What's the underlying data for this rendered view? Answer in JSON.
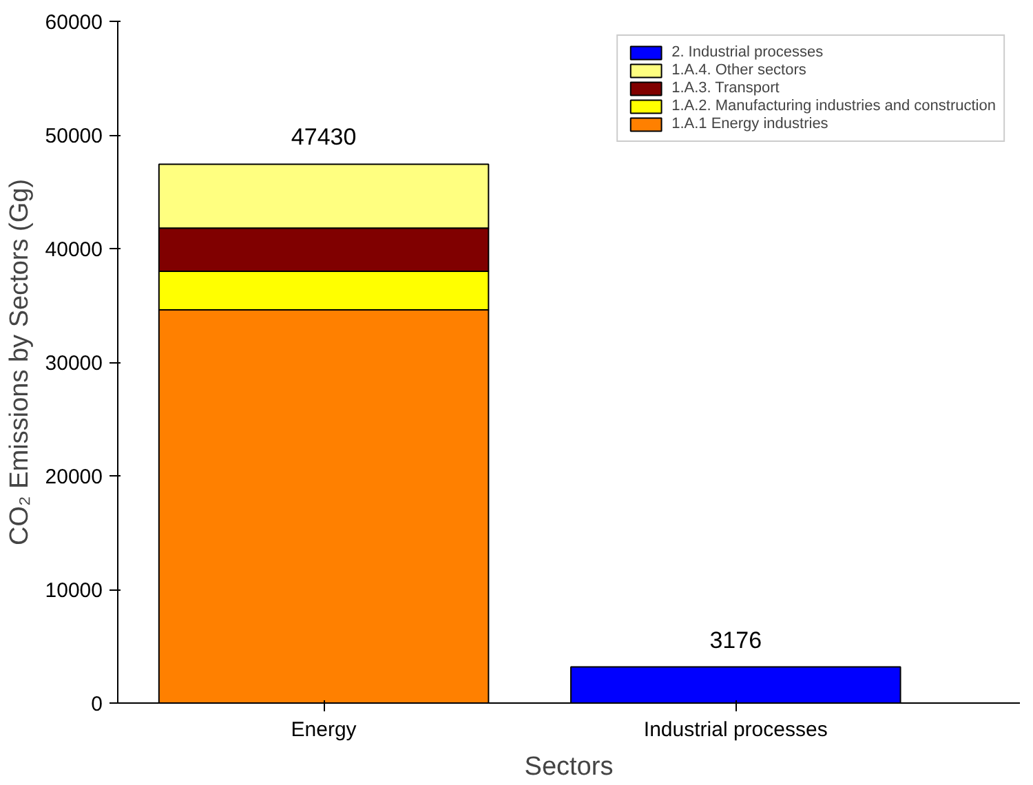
{
  "chart_data": {
    "type": "bar",
    "stacked": true,
    "xlabel": "Sectors",
    "ylabel": "CO₂ Emissions by Sectors (Gg)",
    "categories": [
      "Energy",
      "Industrial processes"
    ],
    "series": [
      {
        "name": "1.A.1 Energy industries",
        "color": "#ff8000",
        "values": [
          34600,
          null
        ]
      },
      {
        "name": "1.A.2. Manufacturing industries and construction",
        "color": "#ffff00",
        "values": [
          3400,
          null
        ]
      },
      {
        "name": "1.A.3. Transport",
        "color": "#800000",
        "values": [
          3800,
          null
        ]
      },
      {
        "name": "1.A.4. Other sectors",
        "color": "#ffff80",
        "values": [
          5630,
          null
        ]
      },
      {
        "name": "2. Industrial processes",
        "color": "#0000ff",
        "values": [
          null,
          3176
        ]
      }
    ],
    "totals": [
      "47430",
      "3176"
    ],
    "ylim": [
      0,
      60000
    ],
    "yticks": [
      0,
      10000,
      20000,
      30000,
      40000,
      50000,
      60000
    ],
    "grid": false,
    "legend": "top right"
  }
}
